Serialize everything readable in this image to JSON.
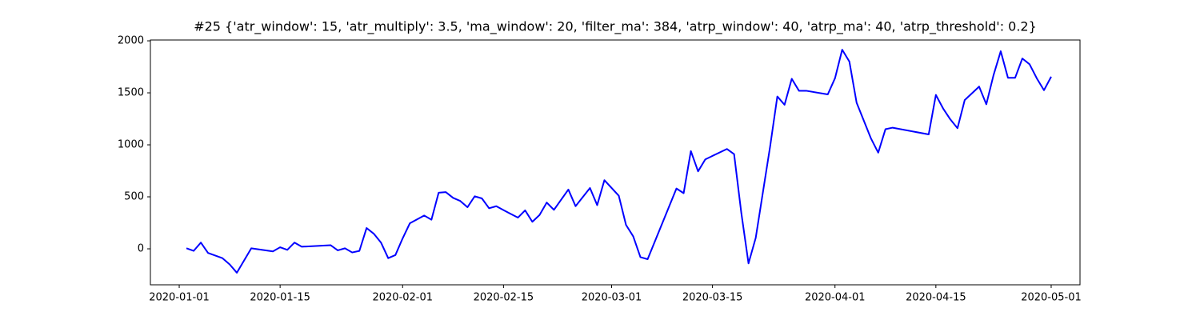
{
  "chart_data": {
    "type": "line",
    "title": "#25 {'atr_window': 15, 'atr_multiply': 3.5, 'ma_window': 20, 'filter_ma': 384, 'atrp_window': 40, 'atrp_ma': 40, 'atrp_threshold': 0.2}",
    "x": [
      "2020-01-02",
      "2020-01-03",
      "2020-01-04",
      "2020-01-05",
      "2020-01-07",
      "2020-01-08",
      "2020-01-09",
      "2020-01-11",
      "2020-01-14",
      "2020-01-15",
      "2020-01-16",
      "2020-01-17",
      "2020-01-18",
      "2020-01-22",
      "2020-01-23",
      "2020-01-24",
      "2020-01-25",
      "2020-01-26",
      "2020-01-27",
      "2020-01-28",
      "2020-01-29",
      "2020-01-30",
      "2020-01-31",
      "2020-02-01",
      "2020-02-02",
      "2020-02-04",
      "2020-02-05",
      "2020-02-06",
      "2020-02-07",
      "2020-02-08",
      "2020-02-09",
      "2020-02-10",
      "2020-02-11",
      "2020-02-12",
      "2020-02-13",
      "2020-02-14",
      "2020-02-15",
      "2020-02-17",
      "2020-02-18",
      "2020-02-19",
      "2020-02-20",
      "2020-02-21",
      "2020-02-22",
      "2020-02-24",
      "2020-02-25",
      "2020-02-27",
      "2020-02-28",
      "2020-02-29",
      "2020-03-02",
      "2020-03-03",
      "2020-03-04",
      "2020-03-05",
      "2020-03-06",
      "2020-03-10",
      "2020-03-11",
      "2020-03-12",
      "2020-03-13",
      "2020-03-14",
      "2020-03-17",
      "2020-03-18",
      "2020-03-19",
      "2020-03-20",
      "2020-03-21",
      "2020-03-23",
      "2020-03-24",
      "2020-03-25",
      "2020-03-26",
      "2020-03-27",
      "2020-03-28",
      "2020-03-31",
      "2020-04-01",
      "2020-04-02",
      "2020-04-03",
      "2020-04-04",
      "2020-04-06",
      "2020-04-07",
      "2020-04-08",
      "2020-04-09",
      "2020-04-14",
      "2020-04-15",
      "2020-04-16",
      "2020-04-17",
      "2020-04-18",
      "2020-04-19",
      "2020-04-21",
      "2020-04-22",
      "2020-04-23",
      "2020-04-24",
      "2020-04-25",
      "2020-04-26",
      "2020-04-27",
      "2020-04-28",
      "2020-04-29",
      "2020-04-30",
      "2020-05-01"
    ],
    "values": [
      5,
      -20,
      60,
      -40,
      -90,
      -150,
      -230,
      5,
      -25,
      15,
      -10,
      60,
      20,
      35,
      -15,
      5,
      -35,
      -20,
      200,
      145,
      60,
      -90,
      -60,
      100,
      245,
      320,
      280,
      540,
      545,
      490,
      460,
      400,
      505,
      485,
      390,
      410,
      372,
      300,
      370,
      260,
      325,
      445,
      375,
      570,
      410,
      585,
      420,
      660,
      510,
      230,
      120,
      -80,
      -100,
      580,
      535,
      940,
      745,
      860,
      960,
      910,
      345,
      -140,
      105,
      985,
      1465,
      1385,
      1635,
      1520,
      1520,
      1485,
      1640,
      1915,
      1800,
      1405,
      1060,
      925,
      1150,
      1165,
      1100,
      1480,
      1350,
      1245,
      1160,
      1430,
      1560,
      1390,
      1670,
      1900,
      1645,
      1645,
      1830,
      1775,
      1640,
      1525,
      1655
    ],
    "color": "#0000ff",
    "xlim": [
      "2019-12-28",
      "2020-05-05"
    ],
    "xticks": [
      "2020-01-01",
      "2020-01-15",
      "2020-02-01",
      "2020-02-15",
      "2020-03-01",
      "2020-03-15",
      "2020-04-01",
      "2020-04-15",
      "2020-05-01"
    ],
    "ylim": [
      -346,
      2008
    ],
    "yticks": [
      0,
      500,
      1000,
      1500,
      2000
    ]
  }
}
